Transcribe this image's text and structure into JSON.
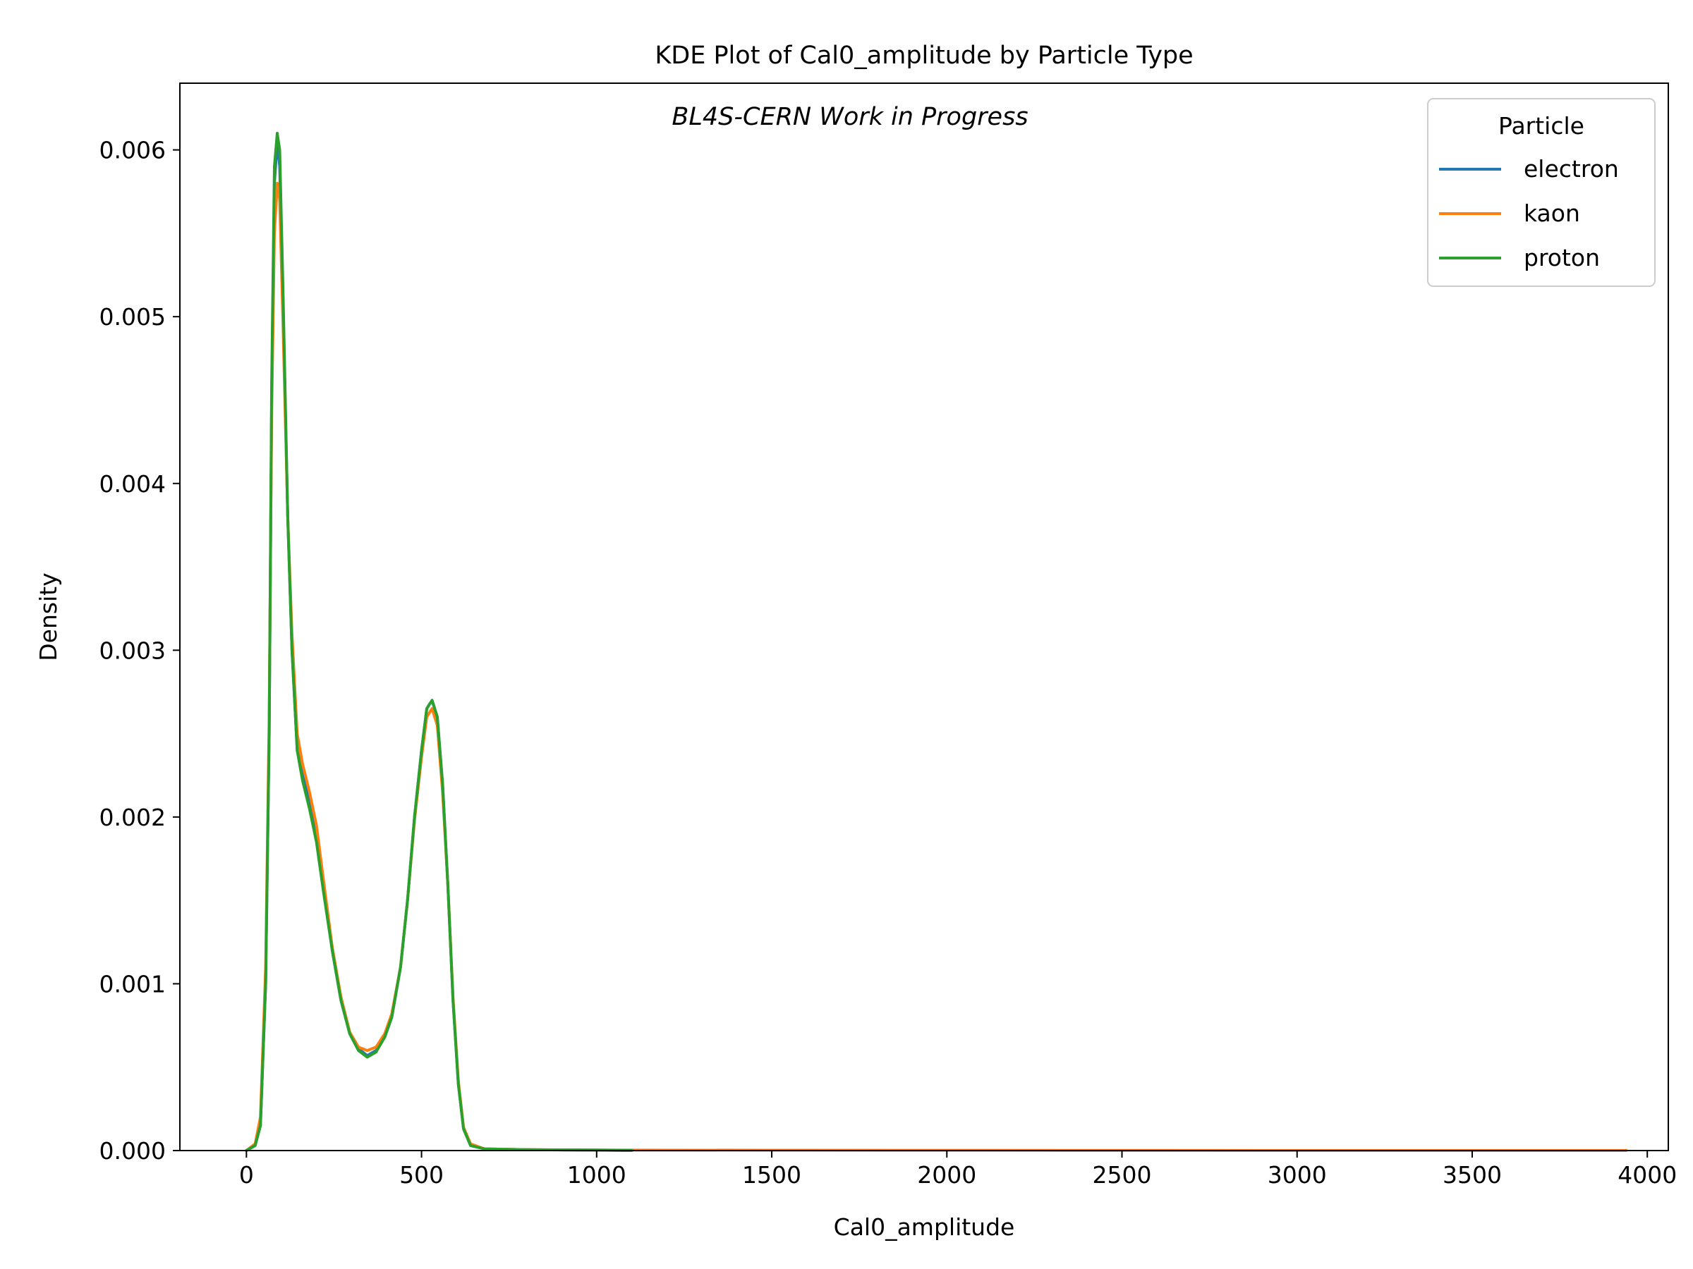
{
  "chart_data": {
    "type": "line",
    "title": "KDE Plot of Cal0_amplitude by Particle Type",
    "annotation": "BL4S-CERN Work in Progress",
    "xlabel": "Cal0_amplitude",
    "ylabel": "Density",
    "xlim": [
      -190,
      4060
    ],
    "ylim": [
      0,
      0.0064
    ],
    "x_ticks": [
      0,
      500,
      1000,
      1500,
      2000,
      2500,
      3000,
      3500,
      4000
    ],
    "x_tick_labels": [
      "0",
      "500",
      "1000",
      "1500",
      "2000",
      "2500",
      "3000",
      "3500",
      "4000"
    ],
    "y_ticks": [
      0,
      0.001,
      0.002,
      0.003,
      0.004,
      0.005,
      0.006
    ],
    "y_tick_labels": [
      "0.000",
      "0.001",
      "0.002",
      "0.003",
      "0.004",
      "0.005",
      "0.006"
    ],
    "grid": false,
    "legend": {
      "title": "Particle",
      "placement": "top-right"
    },
    "series": [
      {
        "name": "electron",
        "color": "#1f77b4",
        "points": [
          [
            0,
            0
          ],
          [
            25,
            3e-05
          ],
          [
            40,
            0.00015
          ],
          [
            55,
            0.001
          ],
          [
            65,
            0.0025
          ],
          [
            72,
            0.0045
          ],
          [
            80,
            0.0058
          ],
          [
            88,
            0.00605
          ],
          [
            95,
            0.0059
          ],
          [
            105,
            0.005
          ],
          [
            118,
            0.0038
          ],
          [
            130,
            0.003
          ],
          [
            145,
            0.0024
          ],
          [
            160,
            0.00225
          ],
          [
            180,
            0.0021
          ],
          [
            200,
            0.0019
          ],
          [
            220,
            0.0016
          ],
          [
            245,
            0.0012
          ],
          [
            270,
            0.0009
          ],
          [
            295,
            0.0007
          ],
          [
            320,
            0.00061
          ],
          [
            345,
            0.00057
          ],
          [
            370,
            0.0006
          ],
          [
            395,
            0.00068
          ],
          [
            415,
            0.0008
          ],
          [
            440,
            0.0011
          ],
          [
            460,
            0.0015
          ],
          [
            480,
            0.002
          ],
          [
            500,
            0.0024
          ],
          [
            515,
            0.00265
          ],
          [
            530,
            0.0027
          ],
          [
            545,
            0.0026
          ],
          [
            560,
            0.0022
          ],
          [
            575,
            0.0016
          ],
          [
            590,
            0.0009
          ],
          [
            605,
            0.0004
          ],
          [
            620,
            0.00013
          ],
          [
            640,
            3e-05
          ],
          [
            680,
            1e-05
          ],
          [
            800,
            5e-06
          ],
          [
            1000,
            2e-06
          ],
          [
            1100,
            0
          ]
        ]
      },
      {
        "name": "kaon",
        "color": "#ff7f0e",
        "points": [
          [
            0,
            0
          ],
          [
            25,
            4e-05
          ],
          [
            40,
            0.0002
          ],
          [
            55,
            0.0011
          ],
          [
            65,
            0.0026
          ],
          [
            72,
            0.0044
          ],
          [
            80,
            0.0055
          ],
          [
            88,
            0.0058
          ],
          [
            95,
            0.0057
          ],
          [
            105,
            0.0049
          ],
          [
            118,
            0.0038
          ],
          [
            130,
            0.0031
          ],
          [
            145,
            0.0025
          ],
          [
            160,
            0.00232
          ],
          [
            180,
            0.00215
          ],
          [
            200,
            0.00195
          ],
          [
            220,
            0.00162
          ],
          [
            245,
            0.00122
          ],
          [
            270,
            0.00092
          ],
          [
            295,
            0.00071
          ],
          [
            320,
            0.00062
          ],
          [
            345,
            0.0006
          ],
          [
            370,
            0.00062
          ],
          [
            395,
            0.0007
          ],
          [
            415,
            0.00082
          ],
          [
            440,
            0.0011
          ],
          [
            460,
            0.0015
          ],
          [
            480,
            0.00198
          ],
          [
            500,
            0.00236
          ],
          [
            515,
            0.0026
          ],
          [
            530,
            0.00265
          ],
          [
            545,
            0.00255
          ],
          [
            560,
            0.00215
          ],
          [
            575,
            0.0016
          ],
          [
            590,
            0.00092
          ],
          [
            605,
            0.00042
          ],
          [
            620,
            0.00014
          ],
          [
            640,
            4e-05
          ],
          [
            680,
            1e-05
          ],
          [
            800,
            5e-06
          ],
          [
            1000,
            3e-06
          ],
          [
            1500,
            2e-06
          ],
          [
            2500,
            1e-06
          ],
          [
            3940,
            5e-07
          ]
        ]
      },
      {
        "name": "proton",
        "color": "#2ca02c",
        "points": [
          [
            0,
            0
          ],
          [
            25,
            3e-05
          ],
          [
            40,
            0.00015
          ],
          [
            55,
            0.001
          ],
          [
            65,
            0.0025
          ],
          [
            72,
            0.0046
          ],
          [
            80,
            0.0059
          ],
          [
            88,
            0.0061
          ],
          [
            95,
            0.006
          ],
          [
            105,
            0.0051
          ],
          [
            118,
            0.0038
          ],
          [
            130,
            0.003
          ],
          [
            145,
            0.0024
          ],
          [
            160,
            0.00222
          ],
          [
            180,
            0.00205
          ],
          [
            200,
            0.00185
          ],
          [
            220,
            0.00155
          ],
          [
            245,
            0.0012
          ],
          [
            270,
            0.0009
          ],
          [
            295,
            0.0007
          ],
          [
            320,
            0.0006
          ],
          [
            345,
            0.00056
          ],
          [
            370,
            0.00059
          ],
          [
            395,
            0.00068
          ],
          [
            415,
            0.0008
          ],
          [
            440,
            0.0011
          ],
          [
            460,
            0.0015
          ],
          [
            480,
            0.002
          ],
          [
            500,
            0.0024
          ],
          [
            515,
            0.00265
          ],
          [
            530,
            0.0027
          ],
          [
            545,
            0.0026
          ],
          [
            560,
            0.0022
          ],
          [
            575,
            0.0016
          ],
          [
            590,
            0.0009
          ],
          [
            605,
            0.0004
          ],
          [
            620,
            0.00013
          ],
          [
            640,
            3e-05
          ],
          [
            680,
            1e-05
          ],
          [
            800,
            5e-06
          ],
          [
            1000,
            3e-06
          ],
          [
            1100,
            1e-06
          ]
        ]
      }
    ]
  }
}
